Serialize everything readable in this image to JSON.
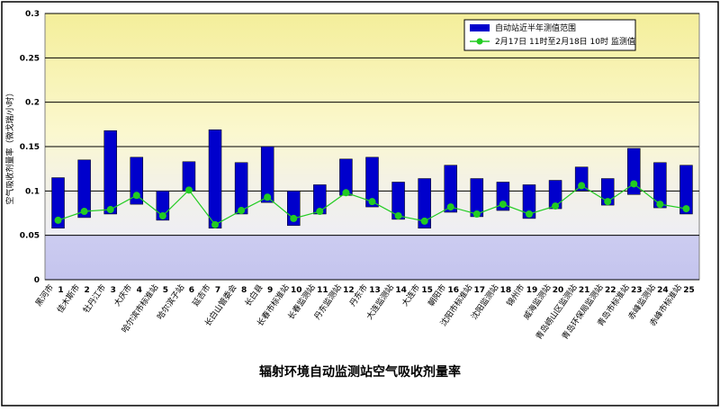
{
  "chart_data": {
    "type": "range-line",
    "title": "辐射环境自动监测站空气吸收剂量率",
    "y_label": "空气吸收剂量率（微戈瑞/小时）",
    "categories": [
      "1",
      "2",
      "3",
      "4",
      "5",
      "6",
      "7",
      "8",
      "9",
      "10",
      "11",
      "12",
      "13",
      "14",
      "15",
      "16",
      "17",
      "18",
      "19",
      "20",
      "21",
      "22",
      "23",
      "24",
      "25"
    ],
    "stations": [
      "黑河市",
      "佳木斯市",
      "牡丹江市",
      "大庆市",
      "哈尔滨市标准站",
      "哈尔滨子站",
      "延吉市",
      "长白山管委会",
      "长白县",
      "长春市标准站",
      "长春监测站",
      "丹东监测站",
      "丹东市",
      "大连监测站",
      "大连市",
      "朝阳市",
      "沈阳市标准站",
      "沈阳监测站",
      "锦州市",
      "威海监测站",
      "青岛崂山区监测站",
      "青岛环保局监测站",
      "青岛市标准站",
      "赤峰监测站",
      "赤峰市标准站"
    ],
    "series": [
      {
        "name": "自动站近半年测值范围",
        "color": "#0000cc",
        "low": [
          0.058,
          0.07,
          0.074,
          0.085,
          0.067,
          0.1,
          0.058,
          0.074,
          0.087,
          0.061,
          0.074,
          0.095,
          0.082,
          0.068,
          0.058,
          0.076,
          0.071,
          0.078,
          0.069,
          0.08,
          0.1,
          0.084,
          0.096,
          0.081,
          0.074
        ],
        "high": [
          0.115,
          0.135,
          0.168,
          0.138,
          0.1,
          0.133,
          0.169,
          0.132,
          0.15,
          0.1,
          0.107,
          0.136,
          0.138,
          0.11,
          0.114,
          0.129,
          0.114,
          0.11,
          0.107,
          0.112,
          0.127,
          0.114,
          0.148,
          0.132,
          0.129
        ]
      },
      {
        "name": "2月17日 11时至2月18日 10时 监测值",
        "color": "#22cc22",
        "values": [
          0.067,
          0.077,
          0.079,
          0.095,
          0.072,
          0.101,
          0.062,
          0.078,
          0.093,
          0.069,
          0.077,
          0.098,
          0.088,
          0.072,
          0.066,
          0.082,
          0.074,
          0.085,
          0.074,
          0.083,
          0.106,
          0.088,
          0.108,
          0.085,
          0.08
        ]
      }
    ],
    "ylim": [
      0,
      0.3
    ],
    "yticks": [
      0,
      0.05,
      0.1,
      0.15,
      0.2,
      0.25,
      0.3
    ],
    "grid": true
  }
}
